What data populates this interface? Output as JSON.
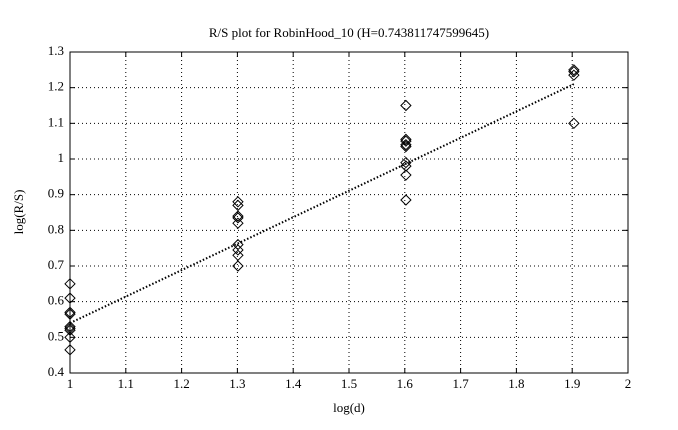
{
  "chart_data": {
    "type": "scatter",
    "title": "R/S plot for RobinHood_10 (H=0.743811747599645)",
    "x_label": "log(d)",
    "y_label": "log(R/S)",
    "xlim": [
      1,
      2
    ],
    "xticks": [
      1,
      1.1,
      1.2,
      1.3,
      1.4,
      1.5,
      1.6,
      1.7,
      1.8,
      1.9,
      2
    ],
    "ylim": [
      0.4,
      1.3
    ],
    "yticks": [
      0.4,
      0.5,
      0.6,
      0.7,
      0.8,
      0.9,
      1,
      1.1,
      1.2,
      1.3
    ],
    "grid": true,
    "series": [
      {
        "type": "scatter",
        "marker": "diamond",
        "color": "#000000",
        "x": [
          1,
          1,
          1,
          1,
          1,
          1,
          1,
          1,
          1,
          1.301,
          1.301,
          1.301,
          1.301,
          1.301,
          1.301,
          1.301,
          1.301,
          1.301,
          1.602,
          1.602,
          1.602,
          1.602,
          1.602,
          1.602,
          1.602,
          1.602,
          1.602,
          1.903,
          1.903,
          1.903,
          1.903
        ],
        "values": [
          0.65,
          0.61,
          0.57,
          0.565,
          0.53,
          0.525,
          0.52,
          0.5,
          0.465,
          0.88,
          0.87,
          0.84,
          0.835,
          0.82,
          0.76,
          0.745,
          0.73,
          0.7,
          1.15,
          1.055,
          1.05,
          1.04,
          1.035,
          0.99,
          0.98,
          0.955,
          0.885,
          1.25,
          1.245,
          1.235,
          1.1
        ]
      },
      {
        "type": "line",
        "style": "dotted",
        "color": "#000000",
        "x": [
          1,
          1.903
        ],
        "values": [
          0.54,
          1.21
        ]
      }
    ]
  }
}
